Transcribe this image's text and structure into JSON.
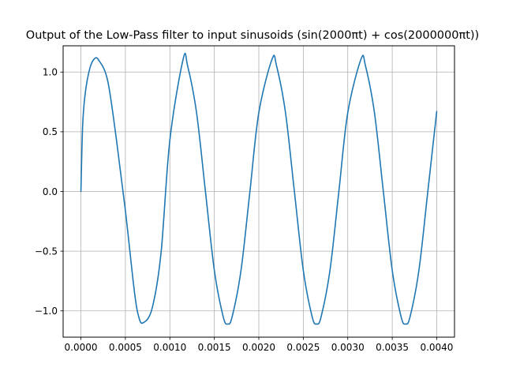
{
  "chart_data": {
    "type": "line",
    "title": "Output of the Low-Pass filter to input sinusoids (sin(2000πt) + cos(2000000πt))",
    "xlabel": "",
    "ylabel": "",
    "xlim": [
      -0.0002,
      0.0042
    ],
    "ylim": [
      -1.22,
      1.22
    ],
    "x_ticks": [
      0.0,
      0.0005,
      0.001,
      0.0015,
      0.002,
      0.0025,
      0.003,
      0.0035,
      0.004
    ],
    "x_tick_labels": [
      "0.0000",
      "0.0005",
      "0.0010",
      "0.0015",
      "0.0020",
      "0.0025",
      "0.0030",
      "0.0035",
      "0.0040"
    ],
    "y_ticks": [
      -1.0,
      -0.5,
      0.0,
      0.5,
      1.0
    ],
    "y_tick_labels": [
      "−1.0",
      "−0.5",
      "0.0",
      "0.5",
      "1.0"
    ],
    "grid": true,
    "series": [
      {
        "color": "#1f77b4",
        "x": [
          0.0,
          2e-05,
          5e-05,
          0.0001,
          0.00015,
          0.0002,
          0.0003,
          0.0004,
          0.0005,
          0.0006,
          0.00065,
          0.0007,
          0.0008,
          0.0009,
          0.001,
          0.00115,
          0.0012,
          0.0013,
          0.0014,
          0.0015,
          0.0016,
          0.00165,
          0.0017,
          0.0018,
          0.0019,
          0.002,
          0.00215,
          0.0022,
          0.0023,
          0.0024,
          0.0025,
          0.0026,
          0.00265,
          0.0027,
          0.0028,
          0.0029,
          0.003,
          0.00315,
          0.0032,
          0.0033,
          0.0034,
          0.0035,
          0.0036,
          0.00365,
          0.0037,
          0.0038,
          0.0039,
          0.004
        ],
        "y": [
          0.0,
          0.56,
          0.83,
          1.03,
          1.11,
          1.1,
          0.93,
          0.43,
          -0.16,
          -0.83,
          -1.05,
          -1.1,
          -0.98,
          -0.52,
          0.43,
          1.11,
          1.05,
          0.66,
          0.0,
          -0.66,
          -1.05,
          -1.11,
          -1.05,
          -0.66,
          0.0,
          0.66,
          1.11,
          1.05,
          0.66,
          0.0,
          -0.66,
          -1.05,
          -1.11,
          -1.05,
          -0.66,
          0.0,
          0.66,
          1.11,
          1.05,
          0.66,
          0.0,
          -0.66,
          -1.05,
          -1.11,
          -1.05,
          -0.66,
          0.0,
          0.67
        ]
      }
    ]
  }
}
